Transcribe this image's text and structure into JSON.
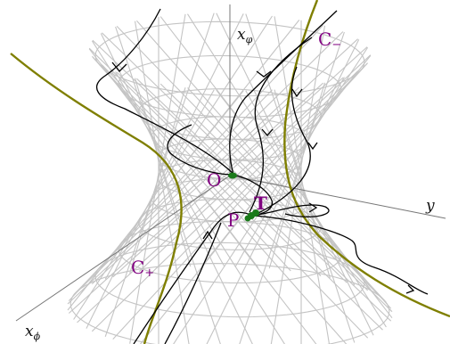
{
  "axes": {
    "x_varphi": {
      "symbol": "x",
      "subscript": "φ"
    },
    "y": {
      "symbol": "y"
    },
    "x_phi": {
      "symbol": "x",
      "subscript": "ϕ"
    }
  },
  "points": {
    "O": "O",
    "T": "T",
    "P": "P"
  },
  "curves": {
    "c_minus": {
      "symbol": "C",
      "subscript": "−"
    },
    "c_plus": {
      "symbol": "C",
      "subscript": "+"
    }
  },
  "colors": {
    "mesh": "#c4c4c4",
    "curve": "#7f7f00",
    "trajectory": "#000000",
    "label": "#800080",
    "point": "#1a7a1a",
    "axis": "#777777"
  }
}
